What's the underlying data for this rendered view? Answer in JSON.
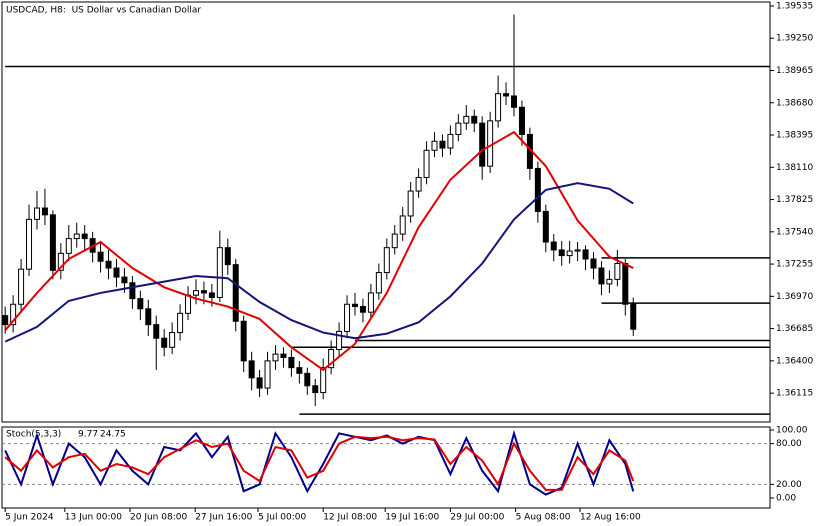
{
  "chart_data": {
    "type": "candlestick",
    "title": "USDCAD, H8:  US Dollar vs Canadian Dollar",
    "xlim": [
      -0.4,
      96.2
    ],
    "ylim": [
      1.3586,
      1.3957
    ],
    "yticks": [
      {
        "value": 1.39535,
        "label": "1.39535"
      },
      {
        "value": 1.3925,
        "label": "1.39250"
      },
      {
        "value": 1.38965,
        "label": "1.38965"
      },
      {
        "value": 1.3868,
        "label": "1.38680"
      },
      {
        "value": 1.38395,
        "label": "1.38395"
      },
      {
        "value": 1.3811,
        "label": "1.38110"
      },
      {
        "value": 1.37825,
        "label": "1.37825"
      },
      {
        "value": 1.3754,
        "label": "1.37540"
      },
      {
        "value": 1.37255,
        "label": "1.37255"
      },
      {
        "value": 1.3697,
        "label": "1.36970"
      },
      {
        "value": 1.36685,
        "label": "1.36685"
      },
      {
        "value": 1.364,
        "label": "1.36400"
      },
      {
        "value": 1.36115,
        "label": "1.36115"
      }
    ],
    "xticks": [
      {
        "value": 0,
        "label": "5 Jun 2024"
      },
      {
        "value": 7.5,
        "label": "13 Jun 00:00"
      },
      {
        "value": 15.7,
        "label": "20 Jun 08:00"
      },
      {
        "value": 23.9,
        "label": "27 Jun 16:00"
      },
      {
        "value": 31.8,
        "label": "5 Jul 00:00"
      },
      {
        "value": 40,
        "label": "12 Jul 08:00"
      },
      {
        "value": 47.8,
        "label": "19 Jul 16:00"
      },
      {
        "value": 56,
        "label": "29 Jul 00:00"
      },
      {
        "value": 64.2,
        "label": "5 Aug 08:00"
      },
      {
        "value": 72.3,
        "label": "12 Aug 16:00"
      }
    ],
    "candles": [
      [
        1.368,
        1.3688,
        1.3664,
        1.3672
      ],
      [
        1.3672,
        1.3698,
        1.3665,
        1.369
      ],
      [
        1.369,
        1.373,
        1.3684,
        1.3721
      ],
      [
        1.3721,
        1.3778,
        1.3715,
        1.3765
      ],
      [
        1.3765,
        1.379,
        1.3756,
        1.3775
      ],
      [
        1.3775,
        1.3792,
        1.376,
        1.3769
      ],
      [
        1.3769,
        1.3773,
        1.3712,
        1.372
      ],
      [
        1.372,
        1.3744,
        1.3712,
        1.3735
      ],
      [
        1.3735,
        1.376,
        1.3728,
        1.3748
      ],
      [
        1.3748,
        1.3762,
        1.374,
        1.3752
      ],
      [
        1.3752,
        1.376,
        1.3738,
        1.3748
      ],
      [
        1.3748,
        1.3754,
        1.3727,
        1.3736
      ],
      [
        1.3736,
        1.3745,
        1.3718,
        1.3728
      ],
      [
        1.3728,
        1.3738,
        1.3712,
        1.3722
      ],
      [
        1.3722,
        1.373,
        1.3705,
        1.3714
      ],
      [
        1.3714,
        1.3722,
        1.37,
        1.3709
      ],
      [
        1.3709,
        1.3715,
        1.3686,
        1.3695
      ],
      [
        1.3695,
        1.3702,
        1.3676,
        1.3686
      ],
      [
        1.3686,
        1.3694,
        1.3662,
        1.3672
      ],
      [
        1.3672,
        1.368,
        1.3632,
        1.366
      ],
      [
        1.366,
        1.3668,
        1.3644,
        1.3652
      ],
      [
        1.3652,
        1.3674,
        1.3646,
        1.3665
      ],
      [
        1.3665,
        1.369,
        1.3658,
        1.3682
      ],
      [
        1.3682,
        1.3706,
        1.3676,
        1.3698
      ],
      [
        1.3698,
        1.3712,
        1.369,
        1.3702
      ],
      [
        1.3702,
        1.371,
        1.369,
        1.37
      ],
      [
        1.37,
        1.3708,
        1.3688,
        1.3696
      ],
      [
        1.3696,
        1.3755,
        1.3692,
        1.374
      ],
      [
        1.374,
        1.3748,
        1.3716,
        1.3725
      ],
      [
        1.3725,
        1.373,
        1.3666,
        1.3675
      ],
      [
        1.3675,
        1.368,
        1.363,
        1.364
      ],
      [
        1.364,
        1.3648,
        1.3614,
        1.3625
      ],
      [
        1.3625,
        1.3632,
        1.3608,
        1.3616
      ],
      [
        1.3616,
        1.3648,
        1.361,
        1.364
      ],
      [
        1.364,
        1.3654,
        1.3632,
        1.3646
      ],
      [
        1.3646,
        1.3652,
        1.3634,
        1.3643
      ],
      [
        1.3643,
        1.365,
        1.3626,
        1.3634
      ],
      [
        1.3634,
        1.364,
        1.362,
        1.3629
      ],
      [
        1.3629,
        1.3634,
        1.361,
        1.3618
      ],
      [
        1.3618,
        1.3624,
        1.36,
        1.3612
      ],
      [
        1.3612,
        1.3642,
        1.3606,
        1.3634
      ],
      [
        1.3634,
        1.3658,
        1.3628,
        1.365
      ],
      [
        1.365,
        1.3674,
        1.3644,
        1.3666
      ],
      [
        1.3666,
        1.3698,
        1.366,
        1.369
      ],
      [
        1.369,
        1.37,
        1.368,
        1.3688
      ],
      [
        1.3688,
        1.3695,
        1.3674,
        1.3683
      ],
      [
        1.3683,
        1.3708,
        1.3678,
        1.37
      ],
      [
        1.37,
        1.3726,
        1.3694,
        1.3718
      ],
      [
        1.3718,
        1.3748,
        1.3712,
        1.374
      ],
      [
        1.374,
        1.376,
        1.3734,
        1.3752
      ],
      [
        1.3752,
        1.3776,
        1.3746,
        1.3768
      ],
      [
        1.3768,
        1.3798,
        1.3762,
        1.379
      ],
      [
        1.379,
        1.381,
        1.3784,
        1.3802
      ],
      [
        1.3802,
        1.3834,
        1.3796,
        1.3826
      ],
      [
        1.3826,
        1.3842,
        1.382,
        1.3834
      ],
      [
        1.3834,
        1.384,
        1.382,
        1.3828
      ],
      [
        1.3828,
        1.3848,
        1.3822,
        1.384
      ],
      [
        1.384,
        1.3858,
        1.3834,
        1.385
      ],
      [
        1.385,
        1.3866,
        1.3844,
        1.3856
      ],
      [
        1.3856,
        1.3862,
        1.3842,
        1.385
      ],
      [
        1.385,
        1.3856,
        1.38,
        1.3812
      ],
      [
        1.3812,
        1.386,
        1.3806,
        1.3852
      ],
      [
        1.3852,
        1.3892,
        1.3846,
        1.3876
      ],
      [
        1.3876,
        1.3886,
        1.3866,
        1.3874
      ],
      [
        1.3874,
        1.3946,
        1.3856,
        1.3864
      ],
      [
        1.3864,
        1.387,
        1.383,
        1.384
      ],
      [
        1.384,
        1.3846,
        1.38,
        1.381
      ],
      [
        1.381,
        1.3816,
        1.3762,
        1.3772
      ],
      [
        1.3772,
        1.3778,
        1.3736,
        1.3745
      ],
      [
        1.3745,
        1.3752,
        1.3728,
        1.3738
      ],
      [
        1.3738,
        1.3746,
        1.3724,
        1.3733
      ],
      [
        1.3733,
        1.3746,
        1.3726,
        1.3737
      ],
      [
        1.3737,
        1.3745,
        1.3728,
        1.3738
      ],
      [
        1.3738,
        1.3742,
        1.372,
        1.373
      ],
      [
        1.373,
        1.3736,
        1.3712,
        1.3722
      ],
      [
        1.3722,
        1.3728,
        1.3698,
        1.3708
      ],
      [
        1.3708,
        1.372,
        1.37,
        1.3712
      ],
      [
        1.3712,
        1.3738,
        1.3706,
        1.3726
      ],
      [
        1.3726,
        1.373,
        1.368,
        1.369
      ],
      [
        1.369,
        1.3696,
        1.3662,
        1.3668
      ]
    ],
    "ma_x": [
      0,
      4,
      8,
      12,
      16,
      20,
      24,
      28,
      32,
      36,
      40,
      44,
      48,
      52,
      56,
      60,
      64,
      68,
      72,
      76,
      79
    ],
    "series": [
      {
        "color": "#e00000",
        "values": [
          1.3667,
          1.37,
          1.373,
          1.3745,
          1.3722,
          1.3705,
          1.3695,
          1.3688,
          1.3677,
          1.3652,
          1.3632,
          1.3655,
          1.37,
          1.3758,
          1.38,
          1.3826,
          1.3842,
          1.3812,
          1.3764,
          1.3732,
          1.3722
        ]
      },
      {
        "color": "#14147a",
        "values": [
          1.3657,
          1.367,
          1.3693,
          1.37,
          1.3705,
          1.371,
          1.3715,
          1.3713,
          1.3692,
          1.3676,
          1.3665,
          1.366,
          1.3664,
          1.3674,
          1.3697,
          1.3726,
          1.3765,
          1.3791,
          1.3797,
          1.3792,
          1.3779
        ]
      }
    ],
    "levels": [
      {
        "value": 1.39,
        "start": 0
      },
      {
        "value": 1.3731,
        "start": 75
      },
      {
        "value": 1.3691,
        "start": 75
      },
      {
        "value": 1.3658,
        "start": 44
      },
      {
        "value": 1.3652,
        "start": 36
      },
      {
        "value": 1.3593,
        "start": 37
      }
    ],
    "stochastic": {
      "label": "Stoch(5,3,3)",
      "ylim": [
        -14.7,
        104.4
      ],
      "yticks": [
        {
          "value": 100,
          "label": "100.00"
        },
        {
          "value": 80,
          "label": "80.00"
        },
        {
          "value": 20,
          "label": "20.00"
        },
        {
          "value": 0,
          "label": "0.00"
        }
      ],
      "levels": [
        80,
        20
      ],
      "x": [
        0,
        2,
        4,
        6,
        8,
        10,
        12,
        14,
        16,
        18,
        20,
        22,
        24,
        26,
        28,
        30,
        32,
        34,
        36,
        38,
        40,
        42,
        44,
        46,
        48,
        50,
        52,
        54,
        56,
        58,
        60,
        62,
        64,
        66,
        68,
        70,
        72,
        74,
        76,
        78,
        79
      ],
      "k": {
        "color": "#00008b",
        "values": [
          70,
          20,
          92,
          20,
          80,
          60,
          20,
          70,
          40,
          20,
          75,
          70,
          95,
          60,
          90,
          10,
          20,
          95,
          60,
          10,
          50,
          95,
          90,
          85,
          92,
          80,
          90,
          85,
          35,
          88,
          40,
          10,
          95,
          20,
          5,
          15,
          80,
          20,
          85,
          50,
          9.77
        ]
      },
      "d": {
        "color": "#e00000",
        "values": [
          60,
          40,
          70,
          45,
          60,
          65,
          40,
          50,
          45,
          35,
          60,
          72,
          85,
          75,
          80,
          40,
          25,
          75,
          70,
          30,
          40,
          80,
          90,
          88,
          90,
          85,
          88,
          86,
          50,
          75,
          55,
          20,
          80,
          40,
          12,
          12,
          60,
          35,
          70,
          55,
          24.75
        ]
      }
    }
  }
}
